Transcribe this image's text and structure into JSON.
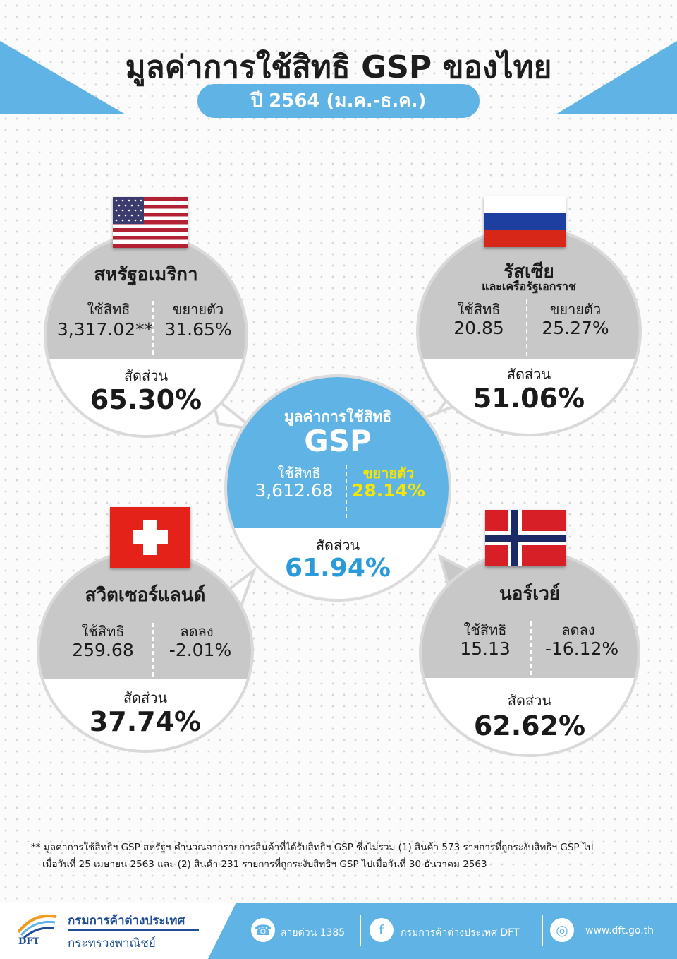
{
  "header": {
    "title": "มูลค่าการใช้สิทธิ GSP ของไทย",
    "period": "ปี 2564 (ม.ค.-ธ.ค.)"
  },
  "colors": {
    "accent": "#5fb3e5",
    "grey": "#c8c8c8",
    "yellow": "#f7e600",
    "share_blue": "#2a9ad8"
  },
  "center": {
    "title": "มูลค่าการใช้สิทธิ",
    "name": "GSP",
    "used_label": "ใช้สิทธิ",
    "used_value": "3,612.68",
    "growth_label": "ขยายตัว",
    "growth_value": "28.14%",
    "share_label": "สัดส่วน",
    "share_value": "61.94%"
  },
  "usa": {
    "name": "สหรัฐอเมริกา",
    "used_label": "ใช้สิทธิ",
    "used_value": "3,317.02**",
    "growth_label": "ขยายตัว",
    "growth_value": "31.65%",
    "share_label": "สัดส่วน",
    "share_value": "65.30%",
    "flag_icon": "usa-flag-icon"
  },
  "russia": {
    "name": "รัสเซีย",
    "subtitle": "และเครือรัฐเอกราช",
    "used_label": "ใช้สิทธิ",
    "used_value": "20.85",
    "growth_label": "ขยายตัว",
    "growth_value": "25.27%",
    "share_label": "สัดส่วน",
    "share_value": "51.06%",
    "flag_icon": "russia-flag-icon"
  },
  "switzerland": {
    "name": "สวิตเซอร์แลนด์",
    "used_label": "ใช้สิทธิ",
    "used_value": "259.68",
    "growth_label": "ลดลง",
    "growth_value": "-2.01%",
    "share_label": "สัดส่วน",
    "share_value": "37.74%",
    "flag_icon": "switzerland-flag-icon"
  },
  "norway": {
    "name": "นอร์เวย์",
    "used_label": "ใช้สิทธิ",
    "used_value": "15.13",
    "growth_label": "ลดลง",
    "growth_value": "-16.12%",
    "share_label": "สัดส่วน",
    "share_value": "62.62%",
    "flag_icon": "norway-flag-icon"
  },
  "footnote": {
    "line1": "** มูลค่าการใช้สิทธิฯ GSP สหรัฐฯ คำนวณจากรายการสินค้าที่ได้รับสิทธิฯ GSP ซึ่งไม่รวม (1) สินค้า 573 รายการที่ถูกระงับสิทธิฯ GSP ไป",
    "line2": "เมื่อวันที่ 25 เมษายน 2563 และ (2) สินค้า 231 รายการที่ถูกระงับสิทธิฯ GSP ไปเมื่อวันที่ 30 ธันวาคม 2563"
  },
  "footer": {
    "logo_text": "DFT",
    "department": "กรมการค้าต่างประเทศ",
    "ministry": "กระทรวงพาณิชย์",
    "hotline": "สายด่วน 1385",
    "facebook": "กรมการค้าต่างประเทศ DFT",
    "website": "www.dft.go.th",
    "phone_icon": "phone-icon",
    "facebook_icon": "facebook-icon",
    "web_icon": "globe-icon"
  }
}
